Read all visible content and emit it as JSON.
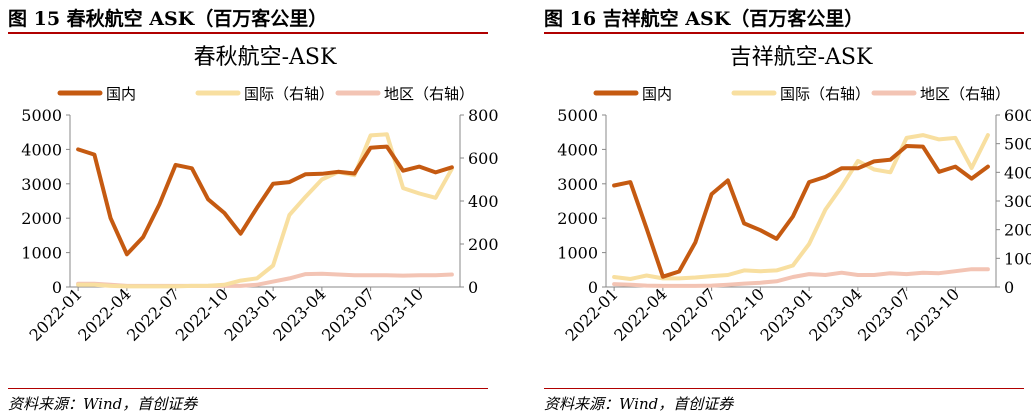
{
  "figures": [
    {
      "figure_title": "图 15 春秋航空 ASK（百万客公里）",
      "source": "资料来源：Wind，首创证券"
    },
    {
      "figure_title": "图 16 吉祥航空 ASK（百万客公里）",
      "source": "资料来源：Wind，首创证券"
    }
  ],
  "chart_data": [
    {
      "type": "line",
      "title": "春秋航空-ASK",
      "legend_position": "top",
      "grid": false,
      "x_tick_labels": [
        "2022-01",
        "2022-04",
        "2022-07",
        "2022-10",
        "2023-01",
        "2023-04",
        "2023-07",
        "2023-10"
      ],
      "x": [
        "2022-01",
        "2022-02",
        "2022-03",
        "2022-04",
        "2022-05",
        "2022-06",
        "2022-07",
        "2022-08",
        "2022-09",
        "2022-10",
        "2022-11",
        "2022-12",
        "2023-01",
        "2023-02",
        "2023-03",
        "2023-04",
        "2023-05",
        "2023-06",
        "2023-07",
        "2023-08",
        "2023-09",
        "2023-10",
        "2023-11",
        "2023-12"
      ],
      "left_ylim": [
        0,
        5000
      ],
      "left_yticks": [
        0,
        1000,
        2000,
        3000,
        4000,
        5000
      ],
      "right_ylim": [
        0,
        800
      ],
      "right_yticks": [
        0,
        200,
        400,
        600,
        800
      ],
      "series": [
        {
          "name": "国内",
          "axis": "left",
          "color": "#c55a11",
          "values": [
            4000,
            3850,
            2000,
            950,
            1450,
            2400,
            3550,
            3450,
            2550,
            2150,
            1550,
            2300,
            3000,
            3050,
            3280,
            3290,
            3350,
            3300,
            4050,
            4080,
            3380,
            3500,
            3330,
            3480
          ]
        },
        {
          "name": "国际（右轴）",
          "axis": "right",
          "color": "#f8dfa0",
          "values": [
            10,
            10,
            5,
            3,
            3,
            3,
            3,
            5,
            6,
            10,
            30,
            40,
            100,
            335,
            420,
            500,
            535,
            520,
            705,
            710,
            460,
            435,
            415,
            550
          ]
        },
        {
          "name": "地区（右轴）",
          "axis": "right",
          "color": "#f3c4b4",
          "values": [
            15,
            15,
            10,
            5,
            5,
            5,
            5,
            5,
            5,
            5,
            5,
            10,
            25,
            40,
            60,
            62,
            58,
            55,
            55,
            55,
            53,
            55,
            55,
            58
          ]
        }
      ]
    },
    {
      "type": "line",
      "title": "吉祥航空-ASK",
      "legend_position": "top",
      "grid": false,
      "x_tick_labels": [
        "2022-01",
        "2022-04",
        "2022-07",
        "2022-10",
        "2023-01",
        "2023-04",
        "2023-07",
        "2023-10"
      ],
      "x": [
        "2022-01",
        "2022-02",
        "2022-03",
        "2022-04",
        "2022-05",
        "2022-06",
        "2022-07",
        "2022-08",
        "2022-09",
        "2022-10",
        "2022-11",
        "2022-12",
        "2023-01",
        "2023-02",
        "2023-03",
        "2023-04",
        "2023-05",
        "2023-06",
        "2023-07",
        "2023-08",
        "2023-09",
        "2023-10",
        "2023-11",
        "2023-12"
      ],
      "left_ylim": [
        0,
        5000
      ],
      "left_yticks": [
        0,
        1000,
        2000,
        3000,
        4000,
        5000
      ],
      "right_ylim": [
        0,
        600
      ],
      "right_yticks": [
        0,
        100,
        200,
        300,
        400,
        500,
        600
      ],
      "series": [
        {
          "name": "国内",
          "axis": "left",
          "color": "#c55a11",
          "values": [
            2950,
            3050,
            1700,
            300,
            450,
            1300,
            2700,
            3100,
            1850,
            1650,
            1400,
            2050,
            3050,
            3200,
            3450,
            3450,
            3650,
            3700,
            4100,
            4080,
            3350,
            3500,
            3150,
            3500
          ]
        },
        {
          "name": "国际（右轴）",
          "axis": "right",
          "color": "#f8dfa0",
          "values": [
            35,
            28,
            40,
            30,
            30,
            33,
            38,
            42,
            58,
            55,
            58,
            75,
            150,
            270,
            350,
            440,
            410,
            400,
            520,
            530,
            515,
            520,
            415,
            530
          ]
        },
        {
          "name": "地区（右轴）",
          "axis": "right",
          "color": "#f3c4b4",
          "values": [
            10,
            8,
            5,
            4,
            4,
            4,
            5,
            8,
            12,
            15,
            20,
            35,
            45,
            42,
            50,
            42,
            42,
            48,
            45,
            50,
            48,
            55,
            62,
            62
          ]
        }
      ]
    }
  ]
}
